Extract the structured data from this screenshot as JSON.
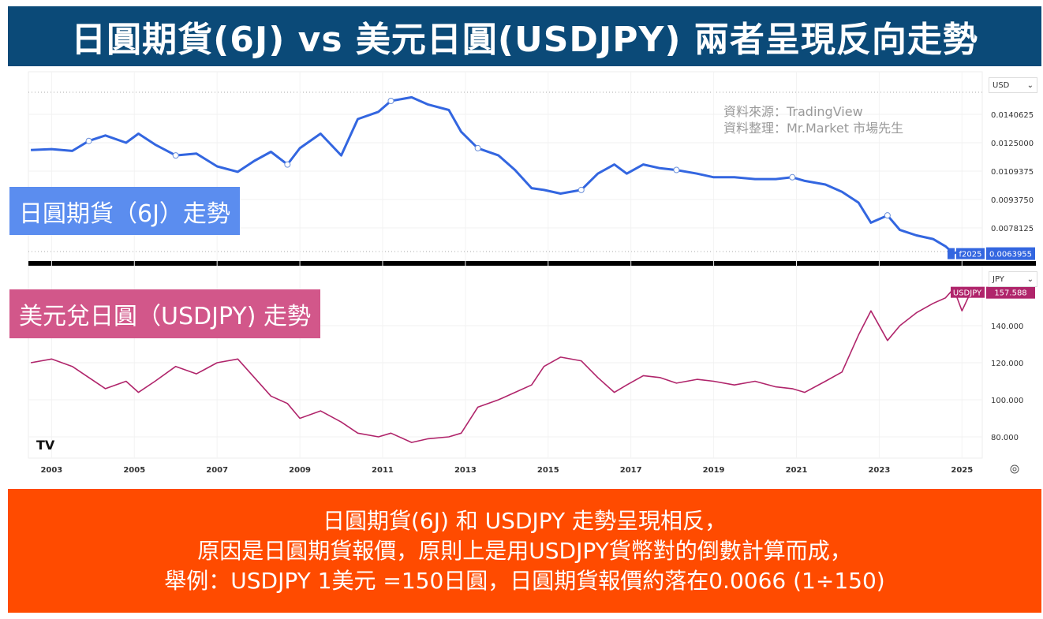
{
  "title": "日圓期貨(6J) vs 美元日圓(USDJPY) 兩者呈現反向走勢",
  "labels": {
    "top": "日圓期貨（6J）走勢",
    "bottom": "美元兌日圓（USDJPY) 走勢"
  },
  "source": {
    "line1": "資料來源：TradingView",
    "line2": "資料整理：Mr.Market 市場先生"
  },
  "footer": {
    "line1": "日圓期貨(6J) 和 USDJPY 走勢呈現相反，",
    "line2": "原因是日圓期貨報價，原則上是用USDJPY貨幣對的倒數計算而成，",
    "line3": "舉例：USDJPY 1美元 =150日圓，日圓期貨報價約落在0.0066 (1÷150)"
  },
  "selectors": {
    "top": "USD",
    "bottom": "JPY"
  },
  "colors": {
    "title_bg": "#0b4a78",
    "line_6j": "#3366e0",
    "line_usdjpy": "#b0256b",
    "footer_bg": "#ff4b00",
    "label_6j_bg": "#5b8def",
    "label_usdjpy_bg": "#d2578a"
  },
  "chart_data": [
    {
      "type": "line",
      "series": [
        {
          "name": "6J",
          "x": [
            2002.5,
            2003.0,
            2003.5,
            2003.9,
            2004.3,
            2004.8,
            2005.1,
            2005.5,
            2006.0,
            2006.5,
            2007.0,
            2007.5,
            2007.9,
            2008.3,
            2008.7,
            2009.0,
            2009.5,
            2010.0,
            2010.4,
            2010.9,
            2011.2,
            2011.7,
            2012.1,
            2012.6,
            2012.9,
            2013.3,
            2013.8,
            2014.2,
            2014.6,
            2014.9,
            2015.3,
            2015.8,
            2016.2,
            2016.6,
            2016.9,
            2017.3,
            2017.7,
            2018.1,
            2018.6,
            2019.0,
            2019.5,
            2020.0,
            2020.5,
            2020.9,
            2021.2,
            2021.7,
            2022.1,
            2022.5,
            2022.8,
            2023.2,
            2023.5,
            2023.9,
            2024.3,
            2024.6,
            2024.8,
            2025.0,
            2025.2
          ],
          "values": [
            0.0121,
            0.01215,
            0.01205,
            0.0126,
            0.0129,
            0.0125,
            0.013,
            0.0124,
            0.0118,
            0.0119,
            0.0112,
            0.0109,
            0.0115,
            0.012,
            0.0113,
            0.0122,
            0.013,
            0.0118,
            0.0138,
            0.0142,
            0.0148,
            0.015,
            0.0146,
            0.0143,
            0.0131,
            0.0122,
            0.0118,
            0.011,
            0.01,
            0.0099,
            0.0097,
            0.0099,
            0.0108,
            0.0113,
            0.0108,
            0.0113,
            0.0111,
            0.011,
            0.0108,
            0.0106,
            0.0106,
            0.0105,
            0.0105,
            0.0106,
            0.0104,
            0.0102,
            0.0098,
            0.0092,
            0.0081,
            0.0085,
            0.0077,
            0.0074,
            0.0072,
            0.0068,
            0.0064,
            0.0066,
            0.0064
          ]
        }
      ],
      "ytick_labels": [
        "0.0140625",
        "0.0125000",
        "0.0109375",
        "0.0093750",
        "0.0078125"
      ],
      "last_value_label": "0.0063955",
      "last_x_label": "f2025",
      "currency": "USD"
    },
    {
      "type": "line",
      "series": [
        {
          "name": "USDJPY",
          "x": [
            2002.5,
            2003.0,
            2003.5,
            2003.9,
            2004.3,
            2004.8,
            2005.1,
            2005.5,
            2006.0,
            2006.5,
            2007.0,
            2007.5,
            2007.9,
            2008.3,
            2008.7,
            2009.0,
            2009.5,
            2010.0,
            2010.4,
            2010.9,
            2011.2,
            2011.7,
            2012.1,
            2012.6,
            2012.9,
            2013.3,
            2013.8,
            2014.2,
            2014.6,
            2014.9,
            2015.3,
            2015.8,
            2016.2,
            2016.6,
            2016.9,
            2017.3,
            2017.7,
            2018.1,
            2018.6,
            2019.0,
            2019.5,
            2020.0,
            2020.5,
            2020.9,
            2021.2,
            2021.7,
            2022.1,
            2022.5,
            2022.8,
            2023.2,
            2023.5,
            2023.9,
            2024.3,
            2024.6,
            2024.8,
            2025.0,
            2025.2
          ],
          "values": [
            120,
            122,
            118,
            112,
            106,
            110,
            104,
            110,
            118,
            114,
            120,
            122,
            112,
            102,
            98,
            90,
            94,
            88,
            82,
            80,
            82,
            77,
            79,
            80,
            82,
            96,
            100,
            104,
            108,
            118,
            123,
            121,
            112,
            104,
            108,
            113,
            112,
            109,
            111,
            110,
            108,
            110,
            107,
            106,
            104,
            110,
            115,
            135,
            148,
            132,
            140,
            147,
            152,
            155,
            160,
            148,
            157.588
          ]
        }
      ],
      "ytick_labels": [
        "140.000",
        "120.000",
        "100.000",
        "80.000"
      ],
      "last_value_label": "157.588",
      "series_label": "USDJPY",
      "currency": "JPY"
    }
  ],
  "x_tick_labels": [
    "2003",
    "2005",
    "2007",
    "2009",
    "2011",
    "2013",
    "2015",
    "2017",
    "2019",
    "2021",
    "2023",
    "2025"
  ],
  "logo": "TV"
}
